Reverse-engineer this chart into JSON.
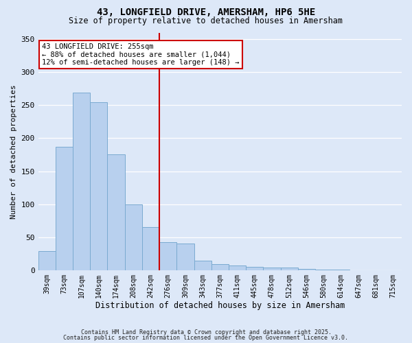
{
  "title": "43, LONGFIELD DRIVE, AMERSHAM, HP6 5HE",
  "subtitle": "Size of property relative to detached houses in Amersham",
  "xlabel": "Distribution of detached houses by size in Amersham",
  "ylabel": "Number of detached properties",
  "background_color": "#dde8f8",
  "bar_color": "#b8d0ee",
  "bar_edge_color": "#7aaad0",
  "bin_labels": [
    "39sqm",
    "73sqm",
    "107sqm",
    "140sqm",
    "174sqm",
    "208sqm",
    "242sqm",
    "276sqm",
    "309sqm",
    "343sqm",
    "377sqm",
    "411sqm",
    "445sqm",
    "478sqm",
    "512sqm",
    "546sqm",
    "580sqm",
    "614sqm",
    "647sqm",
    "681sqm",
    "715sqm"
  ],
  "bar_values": [
    29,
    187,
    269,
    255,
    175,
    100,
    65,
    42,
    40,
    14,
    9,
    7,
    5,
    4,
    4,
    2,
    1,
    1,
    0,
    0,
    0
  ],
  "vline_index": 6.5,
  "vline_color": "#cc0000",
  "annotation_title": "43 LONGFIELD DRIVE: 255sqm",
  "annotation_line1": "← 88% of detached houses are smaller (1,044)",
  "annotation_line2": "12% of semi-detached houses are larger (148) →",
  "annotation_box_color": "#ffffff",
  "annotation_border_color": "#cc0000",
  "ylim": [
    0,
    360
  ],
  "yticks": [
    0,
    50,
    100,
    150,
    200,
    250,
    300,
    350
  ],
  "footer_line1": "Contains HM Land Registry data © Crown copyright and database right 2025.",
  "footer_line2": "Contains public sector information licensed under the Open Government Licence v3.0."
}
